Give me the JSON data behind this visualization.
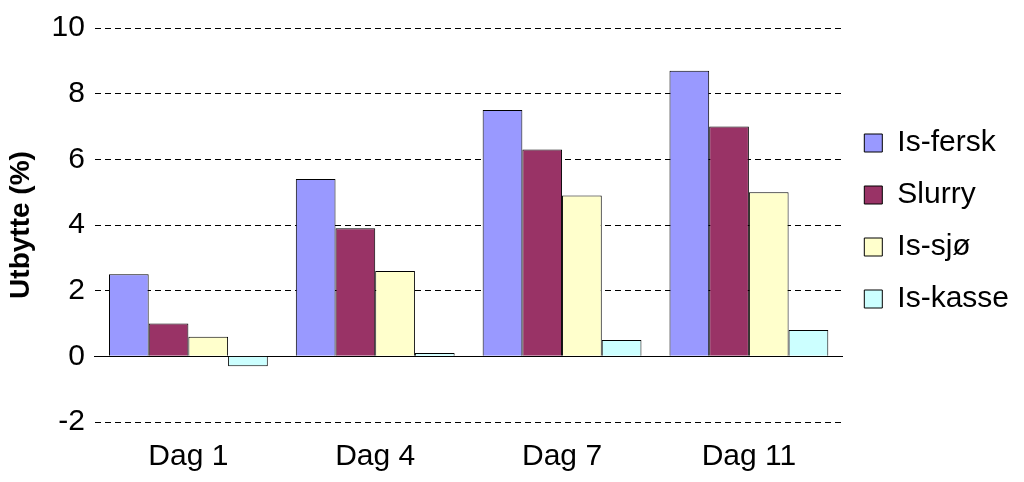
{
  "chart_data": {
    "type": "bar",
    "ylabel": "Utbytte (%)",
    "categories": [
      "Dag 1",
      "Dag 4",
      "Dag 7",
      "Dag 11"
    ],
    "series": [
      {
        "name": "Is-fersk",
        "color": "#9999ff",
        "values": [
          2.5,
          5.4,
          7.5,
          8.7
        ]
      },
      {
        "name": "Slurry",
        "color": "#993366",
        "values": [
          1.0,
          3.9,
          6.3,
          7.0
        ]
      },
      {
        "name": "Is-sjø",
        "color": "#ffffcc",
        "values": [
          0.6,
          2.6,
          4.9,
          5.0
        ]
      },
      {
        "name": "Is-kasse",
        "color": "#ccffff",
        "values": [
          -0.3,
          0.1,
          0.5,
          0.8
        ]
      }
    ],
    "ylim": [
      -2,
      10
    ],
    "yticks": [
      -2,
      0,
      2,
      4,
      6,
      8,
      10
    ],
    "grid": "y",
    "legend": "right"
  }
}
